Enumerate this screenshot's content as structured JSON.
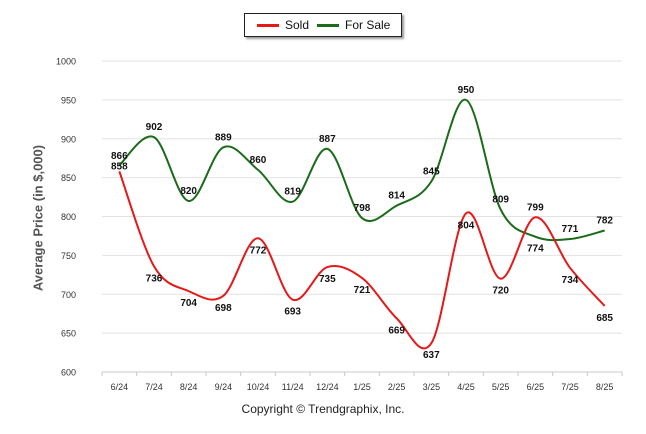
{
  "chart_data": {
    "type": "line",
    "categories": [
      "6/24",
      "7/24",
      "8/24",
      "9/24",
      "10/24",
      "11/24",
      "12/24",
      "1/25",
      "2/25",
      "3/25",
      "4/25",
      "5/25",
      "6/25",
      "7/25",
      "8/25"
    ],
    "series": [
      {
        "name": "Sold",
        "color": "#e41a1a",
        "values": [
          858,
          736,
          704,
          698,
          772,
          693,
          735,
          721,
          669,
          637,
          804,
          720,
          799,
          734,
          685
        ]
      },
      {
        "name": "For Sale",
        "color": "#1a6b1a",
        "values": [
          866,
          902,
          820,
          889,
          860,
          819,
          887,
          798,
          814,
          845,
          950,
          809,
          774,
          771,
          782
        ]
      }
    ],
    "ylabel": "Average Price (in $,000)",
    "ylim": [
      600,
      1000
    ],
    "yticks": [
      600,
      650,
      700,
      750,
      800,
      850,
      900,
      950,
      1000
    ],
    "grid": true,
    "legend_position": "top-center"
  },
  "footer": "Copyright © Trendgraphix, Inc."
}
